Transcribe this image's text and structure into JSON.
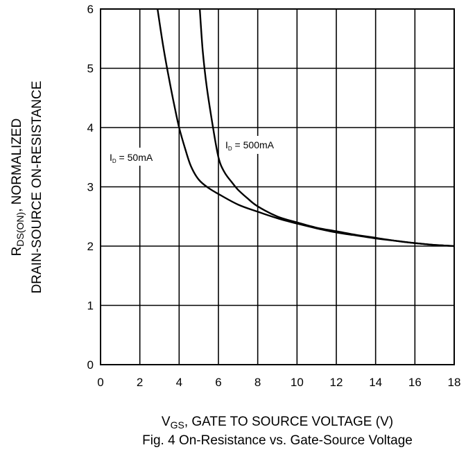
{
  "chart_data": {
    "type": "line",
    "title": "",
    "caption": "Fig. 4  On-Resistance vs. Gate-Source Voltage",
    "xlabel": {
      "main": "V",
      "sub": "GS",
      "rest": ", GATE TO SOURCE VOLTAGE (V)"
    },
    "ylabel": {
      "line1_main": "R",
      "line1_sub": "DS(ON)",
      "line1_rest": ", NORMALIZED",
      "line2": "DRAIN-SOURCE ON-RESISTANCE"
    },
    "xlim": [
      0,
      18
    ],
    "ylim": [
      0,
      6
    ],
    "xticks": [
      0,
      2,
      4,
      6,
      8,
      10,
      12,
      14,
      16,
      18
    ],
    "yticks": [
      0,
      1,
      2,
      3,
      4,
      5,
      6
    ],
    "grid": true,
    "series": [
      {
        "name": "I_D = 50mA",
        "label": {
          "main": "I",
          "sub": "D",
          "rest": " = 50mA"
        },
        "x": [
          2.9,
          3.2,
          3.5,
          3.8,
          4.0,
          4.3,
          4.6,
          5.0,
          5.5,
          6.0,
          7.0,
          8.0,
          9.0,
          10.0,
          11.0,
          12.0,
          13.0,
          14.0,
          15.0,
          16.0,
          17.0,
          18.0
        ],
        "y": [
          6.0,
          5.35,
          4.8,
          4.3,
          4.0,
          3.65,
          3.35,
          3.12,
          2.98,
          2.88,
          2.7,
          2.58,
          2.47,
          2.38,
          2.3,
          2.23,
          2.18,
          2.13,
          2.09,
          2.05,
          2.02,
          2.0
        ]
      },
      {
        "name": "I_D = 500mA",
        "label": {
          "main": "I",
          "sub": "D",
          "rest": " = 500mA"
        },
        "x": [
          5.05,
          5.2,
          5.4,
          5.7,
          6.0,
          6.3,
          6.7,
          7.0,
          7.5,
          8.0,
          9.0,
          10.0,
          11.0,
          12.0,
          13.0,
          14.0,
          15.0,
          16.0,
          17.0,
          18.0
        ],
        "y": [
          6.0,
          5.3,
          4.7,
          4.05,
          3.5,
          3.25,
          3.07,
          2.95,
          2.8,
          2.67,
          2.5,
          2.4,
          2.31,
          2.25,
          2.19,
          2.14,
          2.09,
          2.05,
          2.02,
          2.0
        ]
      }
    ]
  }
}
